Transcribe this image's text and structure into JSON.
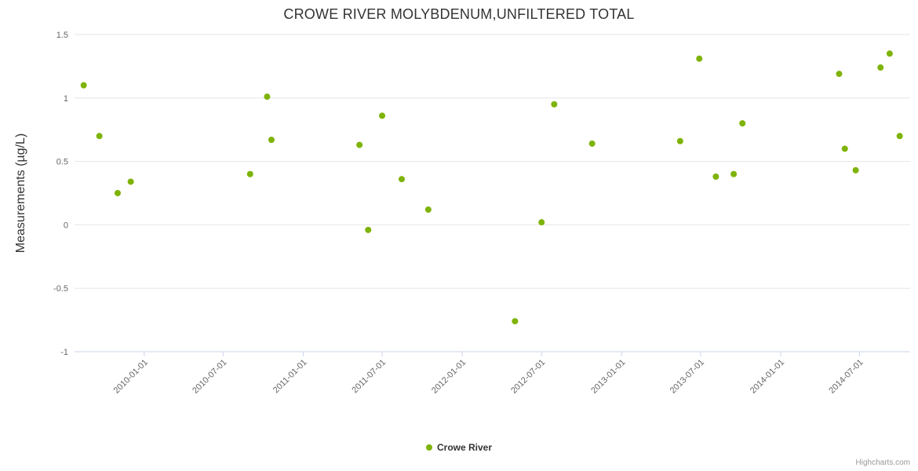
{
  "credit": "Highcharts.com",
  "chart_data": {
    "type": "scatter",
    "title": "CROWE RIVER MOLYBDENUM,UNFILTERED TOTAL",
    "ylabel": "Measurements (µg/L)",
    "ylim": [
      -1,
      1.5
    ],
    "yticks": [
      -1,
      -0.5,
      0,
      0.5,
      1,
      1.5
    ],
    "xlim": [
      "2009-07-25",
      "2014-10-25"
    ],
    "xticks": [
      "2010-01-01",
      "2010-07-01",
      "2011-01-01",
      "2011-07-01",
      "2012-01-01",
      "2012-07-01",
      "2013-01-01",
      "2013-07-01",
      "2014-01-01",
      "2014-07-01"
    ],
    "grid": true,
    "legend_position": "bottom-center",
    "colors": {
      "point": "#7eb307",
      "gridline": "#e6e6e6",
      "axis_line": "#ccd6eb",
      "tick_mark": "#ccd6eb",
      "tick_label": "#666666"
    },
    "series": [
      {
        "name": "Crowe River",
        "color": "#7eb307",
        "points": [
          {
            "x": "2009-08-15",
            "y": 1.1
          },
          {
            "x": "2009-09-20",
            "y": 0.7
          },
          {
            "x": "2009-11-01",
            "y": 0.25
          },
          {
            "x": "2009-12-01",
            "y": 0.34
          },
          {
            "x": "2010-09-01",
            "y": 0.4
          },
          {
            "x": "2010-10-10",
            "y": 1.01
          },
          {
            "x": "2010-10-20",
            "y": 0.67
          },
          {
            "x": "2011-05-10",
            "y": 0.63
          },
          {
            "x": "2011-05-30",
            "y": -0.04
          },
          {
            "x": "2011-07-01",
            "y": 0.86
          },
          {
            "x": "2011-08-15",
            "y": 0.36
          },
          {
            "x": "2011-10-15",
            "y": 0.12
          },
          {
            "x": "2012-05-01",
            "y": -0.76
          },
          {
            "x": "2012-07-01",
            "y": 0.02
          },
          {
            "x": "2012-07-30",
            "y": 0.95
          },
          {
            "x": "2012-10-25",
            "y": 0.64
          },
          {
            "x": "2013-05-15",
            "y": 0.66
          },
          {
            "x": "2013-06-28",
            "y": 1.31
          },
          {
            "x": "2013-08-05",
            "y": 0.38
          },
          {
            "x": "2013-09-15",
            "y": 0.4
          },
          {
            "x": "2013-10-05",
            "y": 0.8
          },
          {
            "x": "2014-05-15",
            "y": 1.19
          },
          {
            "x": "2014-05-28",
            "y": 0.6
          },
          {
            "x": "2014-06-22",
            "y": 0.43
          },
          {
            "x": "2014-08-18",
            "y": 1.24
          },
          {
            "x": "2014-09-08",
            "y": 1.35
          },
          {
            "x": "2014-10-01",
            "y": 0.7
          }
        ]
      }
    ]
  }
}
